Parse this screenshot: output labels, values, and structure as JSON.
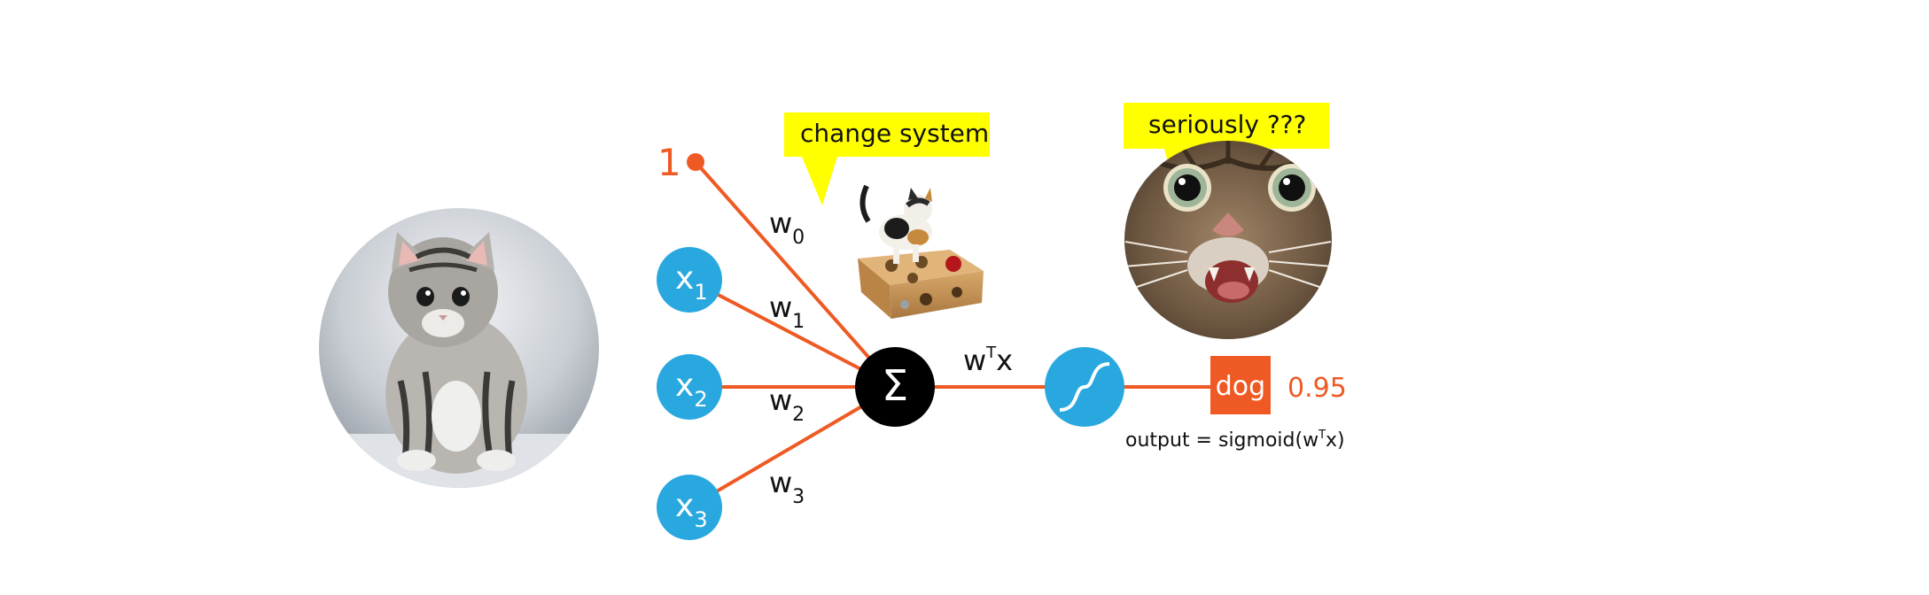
{
  "bias_label": "1",
  "inputs": [
    {
      "name": "x",
      "sub": "1"
    },
    {
      "name": "x",
      "sub": "2"
    },
    {
      "name": "x",
      "sub": "3"
    }
  ],
  "weights": [
    {
      "name": "w",
      "sub": "0"
    },
    {
      "name": "w",
      "sub": "1"
    },
    {
      "name": "w",
      "sub": "2"
    },
    {
      "name": "w",
      "sub": "3"
    }
  ],
  "sum_symbol": "Σ",
  "dot_label": {
    "base": "w",
    "sup": "T",
    "tail": "x"
  },
  "output_class": "dog",
  "output_prob": "0.95",
  "formula": {
    "pre": "output = sigmoid(w",
    "sup": "T",
    "post": "x)"
  },
  "bubbles": {
    "left": "change system",
    "right": "seriously ???"
  },
  "colors": {
    "accent": "#ef5a24",
    "node": "#29a8e0",
    "bubble": "#ffff00",
    "sum_node": "#000000"
  },
  "icons": [
    "kitten-photo",
    "cat-puzzle-box-photo",
    "surprised-cat-photo",
    "sigmoid-icon",
    "sum-icon"
  ]
}
